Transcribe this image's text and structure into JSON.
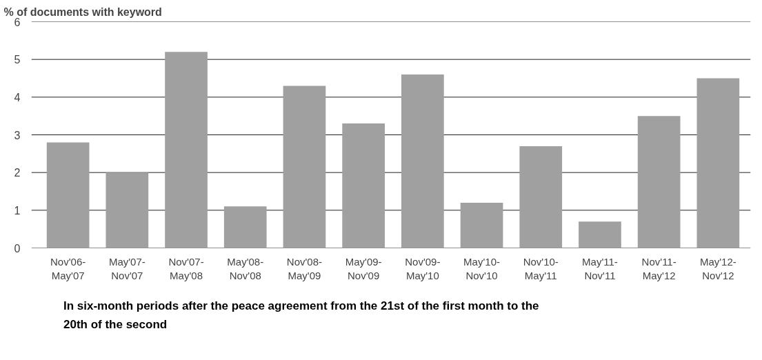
{
  "chart_data": {
    "type": "bar",
    "ylabel": "% of documents with keyword",
    "categories": [
      "Nov'06-May'07",
      "May'07-Nov'07",
      "Nov'07-May'08",
      "May'08-Nov'08",
      "Nov'08-May'09",
      "May'09-Nov'09",
      "Nov'09-May'10",
      "May'10-Nov'10",
      "Nov'10-May'11",
      "May'11-Nov'11",
      "Nov'11-May'12",
      "May'12-Nov'12"
    ],
    "values": [
      2.8,
      2.0,
      5.2,
      1.1,
      4.3,
      3.3,
      4.6,
      1.2,
      2.7,
      0.7,
      3.5,
      4.5
    ],
    "color": "#a0a0a0",
    "ylim": [
      0,
      6
    ],
    "yticks": [
      0,
      1,
      2,
      3,
      4,
      5,
      6
    ],
    "grid": "y",
    "annotations": [
      "In six-month periods after the peace agreement from the 21st of the first month to the 20th of the second"
    ]
  }
}
